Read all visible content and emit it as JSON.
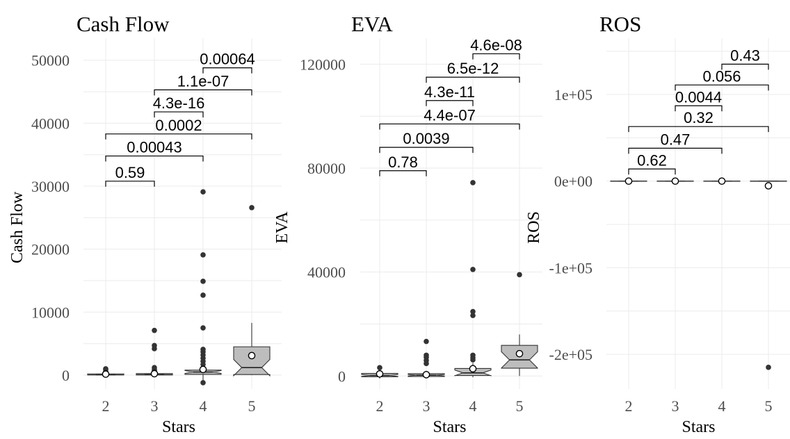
{
  "chart_data": [
    {
      "type": "boxplot",
      "title": "Cash Flow",
      "xlabel": "Stars",
      "ylabel": "Cash Flow",
      "categories": [
        "2",
        "3",
        "4",
        "5"
      ],
      "ylim": [
        -2200,
        53500
      ],
      "yticks": [
        0,
        10000,
        20000,
        30000,
        40000,
        50000
      ],
      "ytick_labels": [
        "0",
        "10000",
        "20000",
        "30000",
        "40000",
        "50000"
      ],
      "grid": true,
      "boxes": [
        {
          "q1": 20,
          "median": 60,
          "q3": 200,
          "lower": 0,
          "upper": 500,
          "mean": 160,
          "outliers": [
            600,
            900,
            1000
          ]
        },
        {
          "q1": 20,
          "median": 80,
          "q3": 250,
          "lower": 0,
          "upper": 600,
          "mean": 230,
          "outliers": [
            700,
            900,
            1200,
            4200,
            4700,
            7100
          ]
        },
        {
          "q1": 120,
          "median": 500,
          "q3": 800,
          "lower": -1200,
          "upper": 1500,
          "mean": 900,
          "outliers": [
            -1200,
            1700,
            2200,
            2700,
            3200,
            3700,
            4100,
            7500,
            12700,
            14900,
            19100,
            29100
          ]
        },
        {
          "q1": 100,
          "median": 1200,
          "q3": 4500,
          "lower": 0,
          "upper": 8300,
          "mean": 3100,
          "outliers": [
            26600
          ]
        }
      ],
      "comparisons": [
        {
          "groups": [
            "2",
            "3"
          ],
          "p": "0.59",
          "y": 30800
        },
        {
          "groups": [
            "2",
            "4"
          ],
          "p": "0.00043",
          "y": 34800
        },
        {
          "groups": [
            "2",
            "5"
          ],
          "p": "0.0002",
          "y": 38300
        },
        {
          "groups": [
            "3",
            "4"
          ],
          "p": "4.3e-16",
          "y": 41800
        },
        {
          "groups": [
            "3",
            "5"
          ],
          "p": "1.1e-07",
          "y": 45300
        },
        {
          "groups": [
            "4",
            "5"
          ],
          "p": "0.00064",
          "y": 48800
        }
      ]
    },
    {
      "type": "boxplot",
      "title": "EVA",
      "xlabel": "Stars",
      "ylabel": "EVA",
      "categories": [
        "2",
        "3",
        "4",
        "5"
      ],
      "ylim": [
        -5000,
        130000
      ],
      "yticks": [
        0,
        40000,
        80000,
        120000
      ],
      "ytick_labels": [
        "0",
        "40000",
        "80000",
        "120000"
      ],
      "grid": true,
      "boxes": [
        {
          "q1": -300,
          "median": 200,
          "q3": 1000,
          "lower": -1000,
          "upper": 2000,
          "mean": 800,
          "outliers": [
            3200
          ]
        },
        {
          "q1": -200,
          "median": 300,
          "q3": 900,
          "lower": -800,
          "upper": 2000,
          "mean": 500,
          "outliers": [
            4800,
            6000,
            7200,
            8000,
            13300
          ]
        },
        {
          "q1": 200,
          "median": 1200,
          "q3": 2900,
          "lower": -500,
          "upper": 5000,
          "mean": 2800,
          "outliers": [
            6200,
            7000,
            8000,
            23300,
            24800,
            41000,
            74400
          ]
        },
        {
          "q1": 3000,
          "median": 6200,
          "q3": 11800,
          "lower": 0,
          "upper": 16000,
          "mean": 8600,
          "outliers": [
            39000
          ]
        }
      ],
      "comparisons": [
        {
          "groups": [
            "2",
            "3"
          ],
          "p": "0.78",
          "y": 79000
        },
        {
          "groups": [
            "2",
            "4"
          ],
          "p": "0.0039",
          "y": 88000
        },
        {
          "groups": [
            "2",
            "5"
          ],
          "p": "4.4e-07",
          "y": 97000
        },
        {
          "groups": [
            "3",
            "4"
          ],
          "p": "4.3e-11",
          "y": 106000
        },
        {
          "groups": [
            "3",
            "5"
          ],
          "p": "6.5e-12",
          "y": 115000
        },
        {
          "groups": [
            "4",
            "5"
          ],
          "p": "4.6e-08",
          "y": 124000
        }
      ]
    },
    {
      "type": "boxplot",
      "title": "ROS",
      "xlabel": "Stars",
      "ylabel": "ROS",
      "categories": [
        "2",
        "3",
        "4",
        "5"
      ],
      "ylim": [
        -240000,
        165000
      ],
      "yticks": [
        -200000,
        -100000,
        0,
        100000
      ],
      "ytick_labels": [
        "-2e+05",
        "-1e+05",
        "0e+00",
        "1e+05"
      ],
      "grid": true,
      "boxes": [
        {
          "q1": -200,
          "median": 0,
          "q3": 200,
          "lower": -400,
          "upper": 400,
          "mean": 0,
          "outliers": [
            700
          ]
        },
        {
          "q1": -200,
          "median": 0,
          "q3": 200,
          "lower": -400,
          "upper": 400,
          "mean": 0,
          "outliers": [
            700
          ]
        },
        {
          "q1": -200,
          "median": 0,
          "q3": 200,
          "lower": -400,
          "upper": 400,
          "mean": 0,
          "outliers": [
            700
          ]
        },
        {
          "q1": -200,
          "median": 0,
          "q3": 200,
          "lower": -400,
          "upper": 400,
          "mean": -5400,
          "outliers": [
            -215000
          ]
        }
      ],
      "comparisons": [
        {
          "groups": [
            "2",
            "3"
          ],
          "p": "0.62",
          "y": 14000
        },
        {
          "groups": [
            "2",
            "4"
          ],
          "p": "0.47",
          "y": 38000
        },
        {
          "groups": [
            "2",
            "5"
          ],
          "p": "0.32",
          "y": 63000
        },
        {
          "groups": [
            "3",
            "4"
          ],
          "p": "0.0044",
          "y": 87000
        },
        {
          "groups": [
            "3",
            "5"
          ],
          "p": "0.056",
          "y": 111000
        },
        {
          "groups": [
            "4",
            "5"
          ],
          "p": "0.43",
          "y": 135000
        }
      ]
    }
  ]
}
